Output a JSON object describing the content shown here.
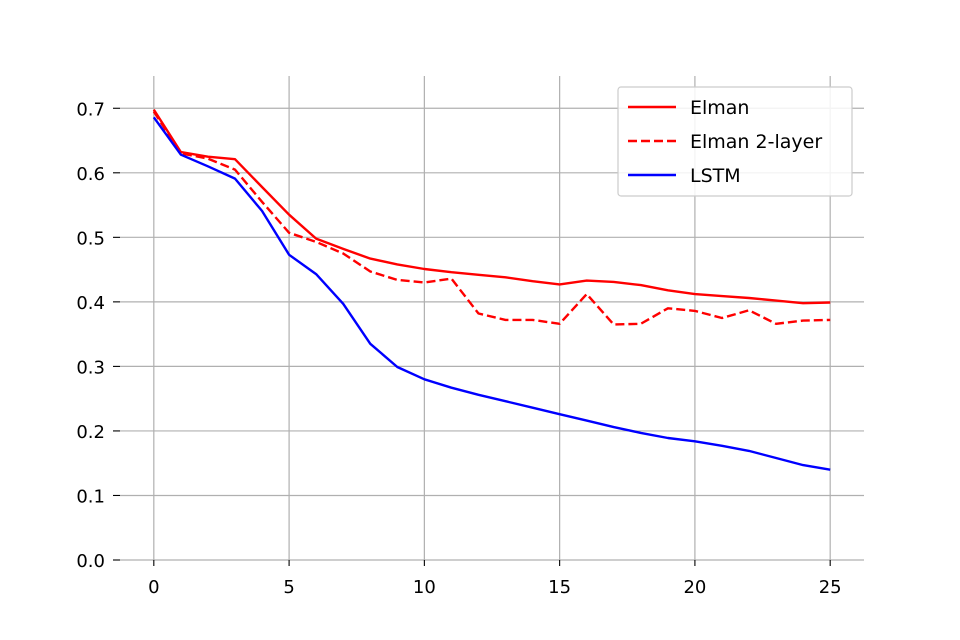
{
  "chart_data": {
    "type": "line",
    "title": "",
    "xlabel": "",
    "ylabel": "",
    "xlim": [
      -1.25,
      26.25
    ],
    "ylim": [
      0.0,
      0.75
    ],
    "xticks": [
      0,
      5,
      10,
      15,
      20,
      25
    ],
    "xtick_labels": [
      "0",
      "5",
      "10",
      "15",
      "20",
      "25"
    ],
    "yticks": [
      0.0,
      0.1,
      0.2,
      0.3,
      0.4,
      0.5,
      0.6,
      0.7
    ],
    "ytick_labels": [
      "0.0",
      "0.1",
      "0.2",
      "0.3",
      "0.4",
      "0.5",
      "0.6",
      "0.7"
    ],
    "grid": true,
    "legend_position": "top-right",
    "x": [
      0,
      1,
      2,
      3,
      4,
      5,
      6,
      7,
      8,
      9,
      10,
      11,
      12,
      13,
      14,
      15,
      16,
      17,
      18,
      19,
      20,
      21,
      22,
      23,
      24,
      25
    ],
    "series": [
      {
        "name": "Elman",
        "color": "#ff0000",
        "style": "solid",
        "values": [
          0.698,
          0.632,
          0.625,
          0.621,
          0.578,
          0.535,
          0.498,
          0.482,
          0.467,
          0.458,
          0.451,
          0.446,
          0.442,
          0.438,
          0.432,
          0.427,
          0.433,
          0.431,
          0.426,
          0.418,
          0.412,
          0.409,
          0.406,
          0.402,
          0.398,
          0.399
        ]
      },
      {
        "name": "Elman 2-layer",
        "color": "#ff0000",
        "style": "dashed",
        "values": [
          0.695,
          0.63,
          0.622,
          0.605,
          0.555,
          0.507,
          0.493,
          0.475,
          0.447,
          0.434,
          0.43,
          0.436,
          0.382,
          0.372,
          0.372,
          0.366,
          0.412,
          0.365,
          0.366,
          0.39,
          0.386,
          0.375,
          0.387,
          0.366,
          0.371,
          0.372
        ]
      },
      {
        "name": "LSTM",
        "color": "#0000ff",
        "style": "solid",
        "values": [
          0.686,
          0.628,
          0.61,
          0.591,
          0.541,
          0.473,
          0.443,
          0.397,
          0.335,
          0.299,
          0.28,
          0.267,
          0.256,
          0.246,
          0.236,
          0.226,
          0.216,
          0.206,
          0.197,
          0.189,
          0.184,
          0.177,
          0.169,
          0.158,
          0.147,
          0.14
        ]
      }
    ]
  }
}
